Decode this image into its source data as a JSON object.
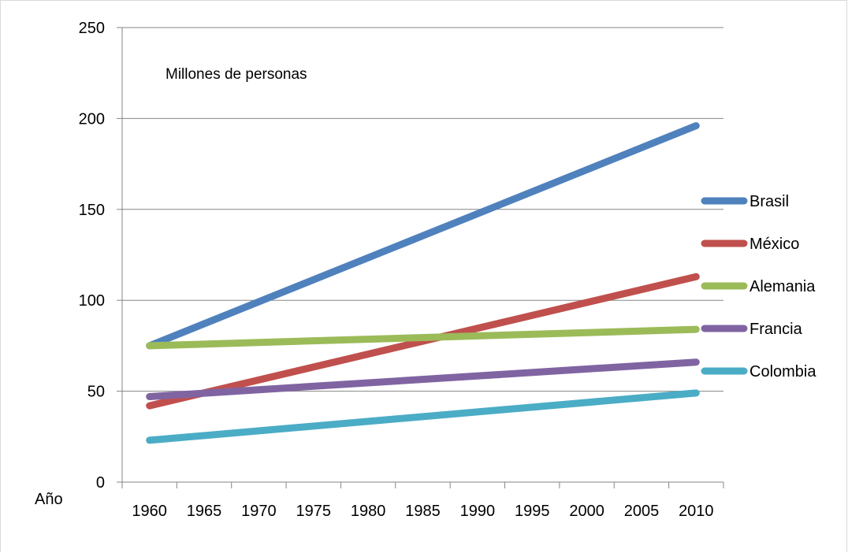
{
  "chart_data": {
    "type": "line",
    "title": "",
    "xlabel": "Año",
    "ylabel": "",
    "annotation": "Millones de personas",
    "x": [
      1960,
      1965,
      1970,
      1975,
      1980,
      1985,
      1990,
      1995,
      2000,
      2005,
      2010
    ],
    "x_range": [
      1957.5,
      2012.5
    ],
    "ylim": [
      0,
      250
    ],
    "y_ticks": [
      0,
      50,
      100,
      150,
      200,
      250
    ],
    "grid": true,
    "legend_position": "right",
    "series": [
      {
        "name": "Brasil",
        "color": "#4f81bd",
        "points": [
          [
            1960,
            75
          ],
          [
            2010,
            196
          ]
        ]
      },
      {
        "name": "México",
        "color": "#c0504d",
        "points": [
          [
            1960,
            42
          ],
          [
            2010,
            113
          ]
        ]
      },
      {
        "name": "Alemania",
        "color": "#9bbb59",
        "points": [
          [
            1960,
            75
          ],
          [
            2010,
            84
          ]
        ]
      },
      {
        "name": "Francia",
        "color": "#8064a2",
        "points": [
          [
            1960,
            47
          ],
          [
            2010,
            66
          ]
        ]
      },
      {
        "name": "Colombia",
        "color": "#4bacc6",
        "points": [
          [
            1960,
            23
          ],
          [
            2010,
            49
          ]
        ]
      }
    ]
  }
}
